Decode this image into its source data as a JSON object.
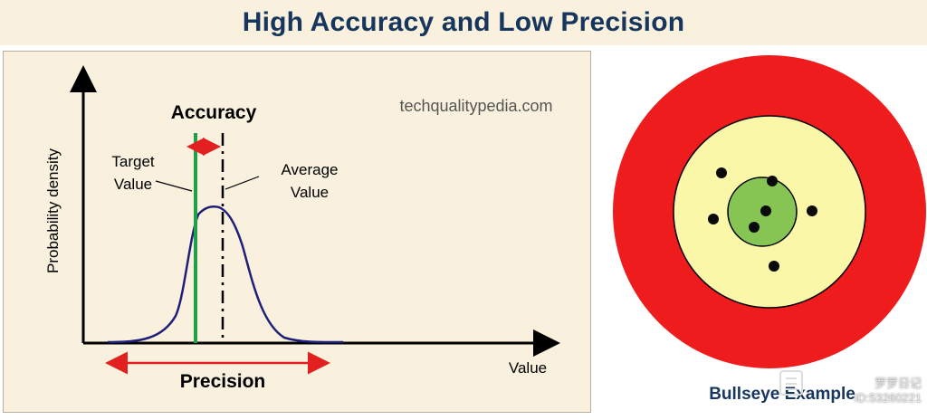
{
  "title": "High Accuracy and Low Precision",
  "diagram": {
    "y_axis_label": "Probability density",
    "x_axis_label": "Value",
    "accuracy_label": "Accuracy",
    "target_label_line1": "Target",
    "target_label_line2": "Value",
    "average_label_line1": "Average",
    "average_label_line2": "Value",
    "precision_label": "Precision",
    "site_credit": "techqualitypedia.com"
  },
  "bullseye": {
    "caption": "Bullseye Example",
    "colors": {
      "outer_ring": "#ee1c1c",
      "middle_ring": "#fbf7a8",
      "center": "#86c454",
      "dots": "#0a0a0a"
    }
  },
  "watermark": {
    "line1": "罗罗日记",
    "line2": "ID:53260221"
  },
  "colors": {
    "title": "#17365d",
    "panel_bg": "#f9f1de",
    "curve": "#1f1f7a",
    "target_line": "#21a04a",
    "arrow_red": "#e22020",
    "axis": "#000000"
  }
}
